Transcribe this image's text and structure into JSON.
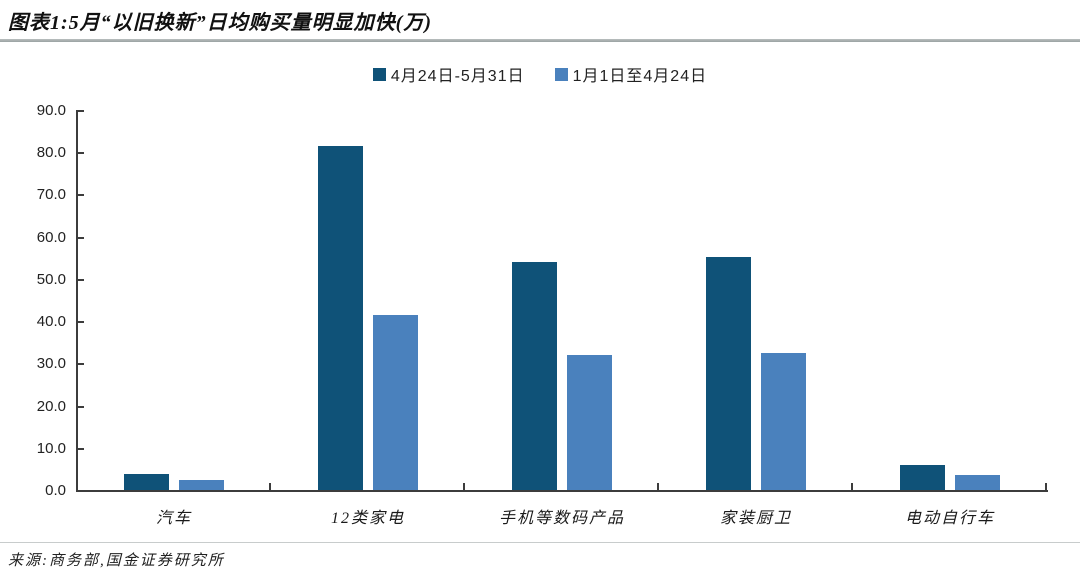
{
  "header": {
    "title": "图表1:5月“以旧换新”日均购买量明显加快(万)"
  },
  "chart_data": {
    "type": "bar",
    "title": "图表1:5月“以旧换新”日均购买量明显加快(万)",
    "categories": [
      "汽车",
      "12类家电",
      "手机等数码产品",
      "家装厨卫",
      "电动自行车"
    ],
    "series": [
      {
        "name": "4月24日-5月31日",
        "color": "#0f5278",
        "values": [
          4.0,
          81.6,
          54.3,
          55.5,
          6.2
        ]
      },
      {
        "name": "1月1日至4月24日",
        "color": "#4a81bd",
        "values": [
          2.5,
          41.8,
          32.2,
          32.7,
          3.8
        ]
      }
    ],
    "xlabel": "",
    "ylabel": "",
    "ylim": [
      0,
      90
    ],
    "ytick_step": 10,
    "ytick_labels": [
      "0.0",
      "10.0",
      "20.0",
      "30.0",
      "40.0",
      "50.0",
      "60.0",
      "70.0",
      "80.0",
      "90.0"
    ],
    "grid": false,
    "legend_position": "top-center"
  },
  "footer": {
    "source": "来源:商务部,国金证券研究所"
  }
}
